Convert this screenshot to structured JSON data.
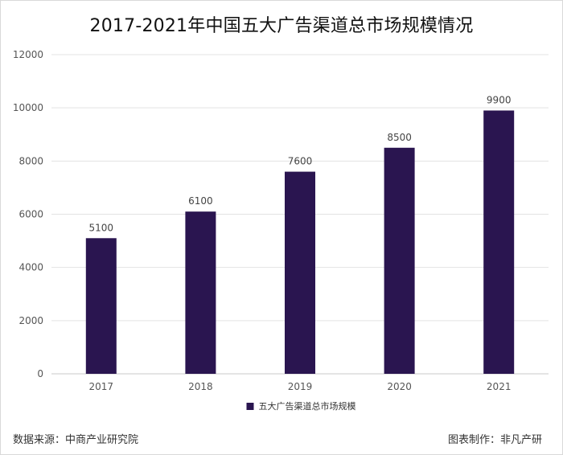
{
  "chart_data": {
    "type": "bar",
    "title": "2017-2021年中国五大广告渠道总市场规模情况",
    "categories": [
      "2017",
      "2018",
      "2019",
      "2020",
      "2021"
    ],
    "series": [
      {
        "name": "五大广告渠道总市场规模",
        "values": [
          5100,
          6100,
          7600,
          8500,
          9900
        ],
        "color": "#2a1550"
      }
    ],
    "ylim": [
      0,
      12000
    ],
    "yticks": [
      "0",
      "2000",
      "4000",
      "6000",
      "8000",
      "10000",
      "12000"
    ],
    "xlabel": "",
    "ylabel": "",
    "grid": true,
    "legend_position": "bottom-center",
    "gridline_color": "#e3e3e3",
    "axis_color": "#c8c8c8"
  },
  "footer": {
    "source": "数据来源：中商产业研究院",
    "maker": "图表制作：非凡产研"
  }
}
